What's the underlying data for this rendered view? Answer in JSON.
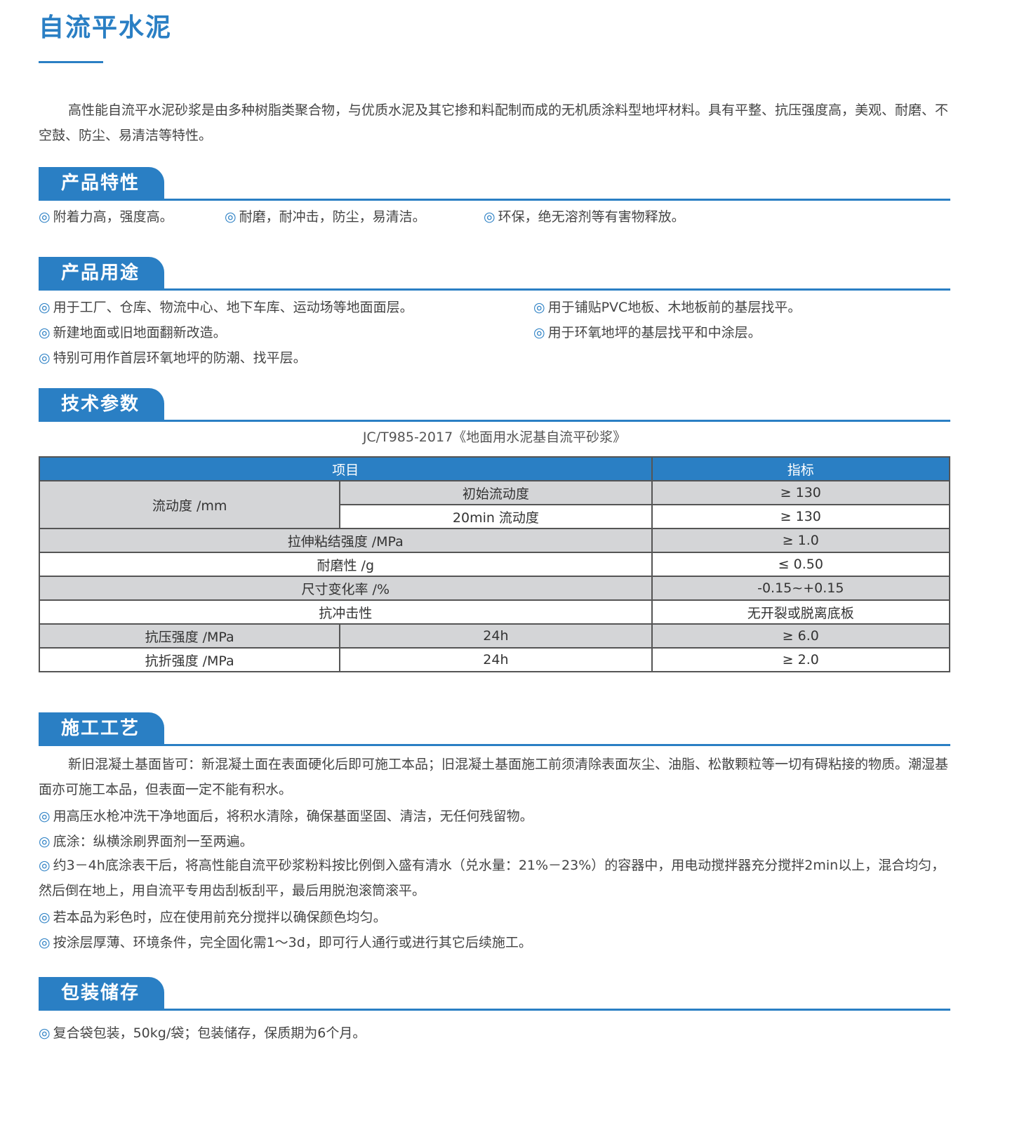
{
  "title": "自流平水泥",
  "intro": "高性能自流平水泥砂浆是由多种树脂类聚合物，与优质水泥及其它掺和料配制而成的无机质涂料型地坪材料。具有平整、抗压强度高，美观、耐磨、不空鼓、防尘、易清洁等特性。",
  "bullet_icon": "◎",
  "features": {
    "heading": "产品特性",
    "items": [
      "附着力高，强度高。",
      "耐磨，耐冲击，防尘，易清洁。",
      "环保，绝无溶剂等有害物释放。"
    ]
  },
  "uses": {
    "heading": "产品用途",
    "items": [
      "用于工厂、仓库、物流中心、地下车库、运动场等地面面层。",
      "用于铺贴PVC地板、木地板前的基层找平。",
      "新建地面或旧地面翻新改造。",
      "用于环氧地坪的基层找平和中涂层。",
      "特别可用作首层环氧地坪的防潮、找平层。"
    ]
  },
  "tech": {
    "heading": "技术参数",
    "caption": "JC/T985-2017《地面用水泥基自流平砂浆》",
    "headers": [
      "项目",
      "指标"
    ],
    "rows": {
      "flow": {
        "label": "流动度 /mm",
        "sub1": "初始流动度",
        "val1": "≥ 130",
        "sub2": "20min 流动度",
        "val2": "≥ 130"
      },
      "tensile": {
        "label": "拉伸粘结强度 /MPa",
        "value": "≥ 1.0"
      },
      "wear": {
        "label": "耐磨性 /g",
        "value": "≤ 0.50"
      },
      "size": {
        "label": "尺寸变化率 /%",
        "value": "-0.15~+0.15"
      },
      "impact": {
        "label": "抗冲击性",
        "value": "无开裂或脱离底板"
      },
      "compress": {
        "label": "抗压强度 /MPa",
        "sub": "24h",
        "value": "≥ 6.0"
      },
      "flex": {
        "label": "抗折强度 /MPa",
        "sub": "24h",
        "value": "≥ 2.0"
      }
    }
  },
  "construction": {
    "heading": "施工工艺",
    "intro": "新旧混凝土基面皆可：新混凝土面在表面硬化后即可施工本品；旧混凝土基面施工前须清除表面灰尘、油脂、松散颗粒等一切有碍粘接的物质。潮湿基面亦可施工本品，但表面一定不能有积水。",
    "items": [
      "用高压水枪冲洗干净地面后，将积水清除，确保基面坚固、清洁，无任何残留物。",
      "底涂：纵横涂刷界面剂一至两遍。",
      "约3－4h底涂表干后，将高性能自流平砂浆粉料按比例倒入盛有清水（兑水量：21%－23%）的容器中，用电动搅拌器充分搅拌2min以上，混合均匀，然后倒在地上，用自流平专用齿刮板刮平，最后用脱泡滚筒滚平。",
      "若本品为彩色时，应在使用前充分搅拌以确保颜色均匀。",
      "按涂层厚薄、环境条件，完全固化需1～3d，即可行人通行或进行其它后续施工。"
    ]
  },
  "storage": {
    "heading": "包装储存",
    "items": [
      "复合袋包装，50kg/袋；包装储存，保质期为6个月。"
    ]
  },
  "colors": {
    "accent": "#2a7fc4",
    "table_gray": "#d4d5d7"
  }
}
